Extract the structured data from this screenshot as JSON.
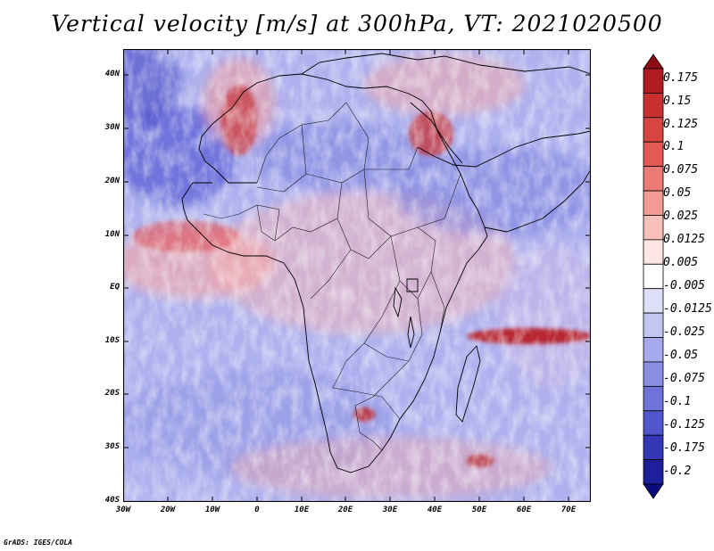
{
  "title": "Vertical velocity [m/s] at 300hPa, VT: 2021020500",
  "map": {
    "region": "Africa",
    "variable": "Vertical velocity",
    "units": "m/s",
    "level": "300hPa",
    "valid_time": "2021020500",
    "lat_ticks": [
      "40N",
      "30N",
      "20N",
      "10N",
      "EQ",
      "10S",
      "20S",
      "30S",
      "40S"
    ],
    "lon_ticks": [
      "30W",
      "20W",
      "10W",
      "0",
      "10E",
      "20E",
      "30E",
      "40E",
      "50E",
      "60E",
      "70E"
    ]
  },
  "colorbar": {
    "labels": [
      "0.175",
      "0.15",
      "0.125",
      "0.1",
      "0.075",
      "0.05",
      "0.025",
      "0.0125",
      "0.005",
      "-0.005",
      "-0.0125",
      "-0.025",
      "-0.05",
      "-0.075",
      "-0.1",
      "-0.125",
      "-0.175",
      "-0.2"
    ],
    "colors": [
      "#8b0a14",
      "#b01c22",
      "#c8302f",
      "#d84540",
      "#e35a55",
      "#ec7b75",
      "#f29b95",
      "#f8c0bb",
      "#fde6e3",
      "#ffffff",
      "#dfe0f8",
      "#c4c6f2",
      "#a6a9eb",
      "#8a8ee3",
      "#6e72d9",
      "#5256cc",
      "#3538b6",
      "#1e1f9a",
      "#0b0b80"
    ]
  },
  "footer": "GrADS: IGES/COLA"
}
